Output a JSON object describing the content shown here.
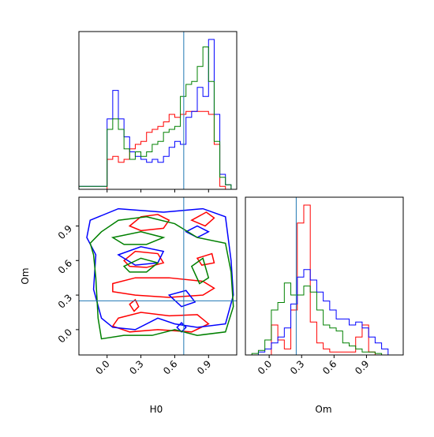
{
  "chart_data": {
    "type": "corner",
    "parameters": [
      "H0",
      "Om"
    ],
    "truths": {
      "H0": 0.68,
      "Om": 0.25
    },
    "truth_color": "#1f77b4",
    "series_colors": [
      "#ff0000",
      "#0000ff",
      "#008000"
    ],
    "axes": {
      "H0": {
        "label": "H0",
        "lim": [
          -0.25,
          1.15
        ],
        "ticks": [
          "0.0",
          "0.3",
          "0.6",
          "0.9"
        ],
        "tick_values": [
          0.0,
          0.3,
          0.6,
          0.9
        ]
      },
      "Om": {
        "label": "Om",
        "lim": [
          -0.22,
          1.15
        ],
        "ticks": [
          "0.0",
          "0.3",
          "0.6",
          "0.9"
        ],
        "tick_values": [
          0.0,
          0.3,
          0.6,
          0.9
        ]
      },
      "Om_hist": {
        "lim": [
          -0.22,
          1.24
        ]
      }
    },
    "hist_H0": {
      "bin_edges": [
        -0.25,
        -0.2,
        -0.15,
        -0.1,
        -0.05,
        0.0,
        0.05,
        0.1,
        0.15,
        0.2,
        0.25,
        0.3,
        0.35,
        0.4,
        0.45,
        0.5,
        0.55,
        0.6,
        0.65,
        0.7,
        0.75,
        0.8,
        0.85,
        0.9,
        0.95,
        1.0,
        1.05,
        1.1,
        1.15
      ],
      "series": [
        {
          "color": "#ff0000",
          "values": [
            0,
            0,
            0,
            0,
            0,
            0.2,
            0.22,
            0.18,
            0.2,
            0.27,
            0.3,
            0.32,
            0.38,
            0.4,
            0.42,
            0.45,
            0.5,
            0.48,
            0.5,
            0.52,
            0.52,
            0.52,
            0.52,
            0.5,
            0.3,
            0.02,
            0,
            0
          ]
        },
        {
          "color": "#0000ff",
          "values": [
            0.02,
            0.02,
            0.02,
            0.02,
            0.02,
            0.47,
            0.66,
            0.47,
            0.35,
            0.25,
            0.22,
            0.2,
            0.18,
            0.2,
            0.18,
            0.22,
            0.28,
            0.32,
            0.3,
            0.48,
            0.52,
            0.68,
            0.62,
            1.0,
            0.5,
            0.1,
            0.03,
            0
          ]
        },
        {
          "color": "#008000",
          "values": [
            0.02,
            0.02,
            0.02,
            0.02,
            0.02,
            0.4,
            0.47,
            0.4,
            0.27,
            0.2,
            0.25,
            0.22,
            0.25,
            0.3,
            0.32,
            0.38,
            0.4,
            0.42,
            0.62,
            0.7,
            0.72,
            0.82,
            0.95,
            0.72,
            0.32,
            0.08,
            0.03,
            0
          ]
        }
      ]
    },
    "hist_Om": {
      "bin_edges": [
        -0.22,
        -0.16,
        -0.1,
        -0.04,
        0.02,
        0.08,
        0.14,
        0.2,
        0.26,
        0.32,
        0.38,
        0.44,
        0.5,
        0.56,
        0.62,
        0.68,
        0.74,
        0.8,
        0.86,
        0.92,
        0.98,
        1.04,
        1.1,
        1.16,
        1.22
      ],
      "series": [
        {
          "color": "#ff0000",
          "values": [
            0,
            0,
            0,
            0,
            0.2,
            0.1,
            0.04,
            0.3,
            0.88,
            1.0,
            0.22,
            0.08,
            0.04,
            0.02,
            0.02,
            0.02,
            0.02,
            0.12,
            0.2,
            0.02,
            0,
            0,
            0,
            0
          ]
        },
        {
          "color": "#0000ff",
          "values": [
            0,
            0,
            0.02,
            0.04,
            0.08,
            0.12,
            0.18,
            0.34,
            0.52,
            0.57,
            0.5,
            0.42,
            0.36,
            0.3,
            0.24,
            0.24,
            0.2,
            0.22,
            0.18,
            0.12,
            0.08,
            0.04,
            0,
            0
          ]
        },
        {
          "color": "#008000",
          "values": [
            0,
            0.01,
            0.03,
            0.1,
            0.3,
            0.35,
            0.48,
            0.4,
            0.4,
            0.46,
            0.42,
            0.3,
            0.2,
            0.18,
            0.16,
            0.08,
            0.06,
            0.04,
            0.02,
            0.02,
            0.01,
            0,
            0,
            0
          ]
        }
      ]
    },
    "contours": [
      {
        "color": "#ff0000",
        "rings": [
          [
            [
              0.2,
              0.9
            ],
            [
              0.3,
              0.98
            ],
            [
              0.45,
              1.0
            ],
            [
              0.55,
              0.95
            ],
            [
              0.5,
              0.88
            ],
            [
              0.3,
              0.86
            ]
          ],
          [
            [
              0.15,
              0.6
            ],
            [
              0.25,
              0.68
            ],
            [
              0.45,
              0.66
            ],
            [
              0.5,
              0.58
            ],
            [
              0.35,
              0.54
            ],
            [
              0.2,
              0.55
            ]
          ],
          [
            [
              0.05,
              0.4
            ],
            [
              0.25,
              0.45
            ],
            [
              0.55,
              0.45
            ],
            [
              0.85,
              0.42
            ],
            [
              0.95,
              0.36
            ],
            [
              0.85,
              0.3
            ],
            [
              0.55,
              0.28
            ],
            [
              0.25,
              0.3
            ],
            [
              0.05,
              0.33
            ]
          ],
          [
            [
              0.1,
              0.1
            ],
            [
              0.3,
              0.15
            ],
            [
              0.55,
              0.12
            ],
            [
              0.8,
              0.13
            ],
            [
              0.9,
              0.05
            ],
            [
              0.75,
              -0.02
            ],
            [
              0.45,
              0.0
            ],
            [
              0.2,
              -0.02
            ],
            [
              0.05,
              0.03
            ]
          ],
          [
            [
              0.75,
              0.95
            ],
            [
              0.88,
              1.02
            ],
            [
              0.95,
              0.97
            ],
            [
              0.87,
              0.9
            ]
          ],
          [
            [
              0.8,
              0.62
            ],
            [
              0.93,
              0.66
            ],
            [
              0.95,
              0.58
            ],
            [
              0.84,
              0.56
            ]
          ],
          [
            [
              0.2,
              0.22
            ],
            [
              0.25,
              0.26
            ],
            [
              0.28,
              0.2
            ],
            [
              0.24,
              0.16
            ]
          ]
        ]
      },
      {
        "color": "#0000ff",
        "rings": [
          [
            [
              -0.15,
              0.95
            ],
            [
              0.1,
              1.05
            ],
            [
              0.5,
              1.02
            ],
            [
              0.85,
              1.05
            ],
            [
              1.05,
              0.98
            ],
            [
              1.1,
              0.6
            ],
            [
              1.12,
              0.3
            ],
            [
              1.05,
              0.05
            ],
            [
              0.8,
              0.02
            ],
            [
              0.6,
              0.05
            ],
            [
              0.45,
              0.1
            ],
            [
              0.25,
              0.0
            ],
            [
              0.05,
              0.02
            ],
            [
              -0.05,
              0.1
            ],
            [
              -0.12,
              0.35
            ],
            [
              -0.1,
              0.65
            ],
            [
              -0.18,
              0.8
            ]
          ],
          [
            [
              0.1,
              0.65
            ],
            [
              0.3,
              0.72
            ],
            [
              0.5,
              0.68
            ],
            [
              0.45,
              0.58
            ],
            [
              0.25,
              0.56
            ]
          ],
          [
            [
              0.55,
              0.3
            ],
            [
              0.7,
              0.34
            ],
            [
              0.78,
              0.24
            ],
            [
              0.66,
              0.2
            ]
          ],
          [
            [
              0.62,
              0.02
            ],
            [
              0.66,
              0.06
            ],
            [
              0.7,
              0.02
            ],
            [
              0.66,
              -0.02
            ]
          ],
          [
            [
              0.7,
              0.85
            ],
            [
              0.8,
              0.9
            ],
            [
              0.9,
              0.85
            ],
            [
              0.8,
              0.8
            ]
          ]
        ]
      },
      {
        "color": "#008000",
        "rings": [
          [
            [
              -0.15,
              0.75
            ],
            [
              -0.05,
              0.85
            ],
            [
              0.1,
              0.95
            ],
            [
              0.35,
              0.98
            ],
            [
              0.6,
              0.92
            ],
            [
              0.8,
              0.8
            ],
            [
              1.05,
              0.75
            ],
            [
              1.1,
              0.5
            ],
            [
              1.12,
              0.2
            ],
            [
              1.05,
              -0.02
            ],
            [
              0.8,
              -0.05
            ],
            [
              0.6,
              0.0
            ],
            [
              0.4,
              -0.05
            ],
            [
              0.15,
              -0.05
            ],
            [
              -0.05,
              -0.08
            ],
            [
              -0.08,
              0.1
            ],
            [
              -0.1,
              0.45
            ],
            [
              -0.12,
              0.65
            ]
          ],
          [
            [
              0.05,
              0.8
            ],
            [
              0.3,
              0.85
            ],
            [
              0.5,
              0.8
            ],
            [
              0.35,
              0.74
            ],
            [
              0.15,
              0.74
            ]
          ],
          [
            [
              0.15,
              0.55
            ],
            [
              0.3,
              0.62
            ],
            [
              0.45,
              0.58
            ],
            [
              0.35,
              0.5
            ],
            [
              0.2,
              0.5
            ]
          ],
          [
            [
              0.75,
              0.55
            ],
            [
              0.85,
              0.62
            ],
            [
              0.9,
              0.45
            ],
            [
              0.82,
              0.4
            ]
          ]
        ]
      }
    ]
  }
}
